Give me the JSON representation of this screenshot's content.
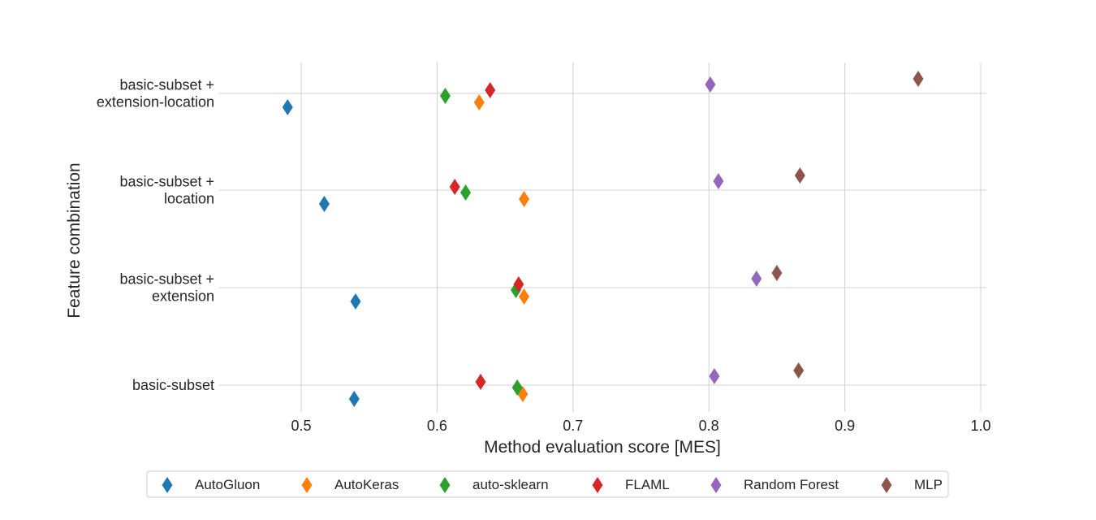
{
  "chart_data": {
    "type": "scatter",
    "title": "",
    "xlabel": "Method evaluation score [MES]",
    "ylabel": "Feature combination",
    "xlim": [
      0.44,
      1.005
    ],
    "xticks": [
      "0.5",
      "0.6",
      "0.7",
      "0.8",
      "0.9",
      "1.0"
    ],
    "xtick_values": [
      0.5,
      0.6,
      0.7,
      0.8,
      0.9,
      1.0
    ],
    "categories": [
      [
        "basic-subset +",
        "extension-location"
      ],
      [
        "basic-subset +",
        "location"
      ],
      [
        "basic-subset +",
        "extension"
      ],
      [
        "basic-subset"
      ]
    ],
    "grid": true,
    "legend_position": "bottom",
    "series": [
      {
        "name": "AutoGluon",
        "color": "#1f77b4",
        "values": [
          0.49,
          0.517,
          0.54,
          0.539
        ]
      },
      {
        "name": "AutoKeras",
        "color": "#ff7f0e",
        "values": [
          0.631,
          0.664,
          0.664,
          0.663
        ]
      },
      {
        "name": "auto-sklearn",
        "color": "#2ca02c",
        "values": [
          0.606,
          0.621,
          0.658,
          0.659
        ]
      },
      {
        "name": "FLAML",
        "color": "#d62728",
        "values": [
          0.639,
          0.613,
          0.66,
          0.632
        ]
      },
      {
        "name": "Random Forest",
        "color": "#9467bd",
        "values": [
          0.801,
          0.807,
          0.835,
          0.804
        ]
      },
      {
        "name": "MLP",
        "color": "#8c564b",
        "values": [
          0.954,
          0.867,
          0.85,
          0.866
        ]
      }
    ]
  }
}
